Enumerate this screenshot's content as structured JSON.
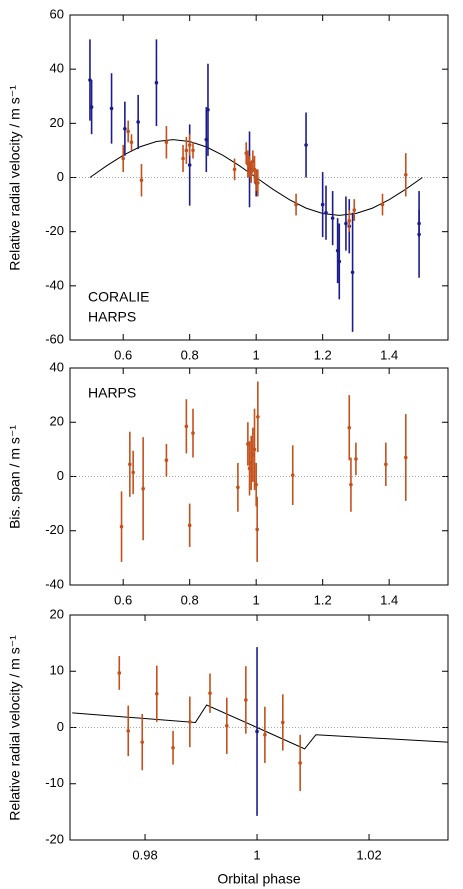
{
  "chart_data": [
    {
      "type": "scatter",
      "ylabel": "Relative radial velocity / m s⁻¹",
      "xlim": [
        0.44,
        1.577
      ],
      "ylim": [
        -60,
        60
      ],
      "xticks": [
        0.6,
        0.8,
        1,
        1.2,
        1.4
      ],
      "yticks": [
        -60,
        -40,
        -20,
        0,
        20,
        40,
        60
      ],
      "zero_line": true,
      "legend": "lower left",
      "model": {
        "color": "#000000",
        "x": [
          0.5,
          0.55,
          0.6,
          0.65,
          0.7,
          0.75,
          0.8,
          0.85,
          0.9,
          0.95,
          1.0,
          1.05,
          1.1,
          1.15,
          1.2,
          1.25,
          1.3,
          1.35,
          1.4,
          1.45,
          1.5
        ],
        "values": [
          0,
          4.3,
          8.2,
          11.3,
          13.3,
          14,
          13.3,
          11.3,
          8.2,
          4.3,
          0,
          -4.3,
          -8.2,
          -11.3,
          -13.3,
          -14,
          -13.3,
          -11.3,
          -8.2,
          -4.3,
          0
        ]
      },
      "series": [
        {
          "name": "CORALIE",
          "color": "#1c1c8c",
          "x": [
            0.5,
            0.505,
            0.565,
            0.605,
            0.645,
            0.7,
            0.8,
            0.85,
            0.855,
            0.98,
            1.0,
            1.15,
            1.2,
            1.21,
            1.23,
            1.245,
            1.25,
            1.27,
            1.28,
            1.29,
            1.49,
            1.49
          ],
          "values": [
            36,
            26,
            25.5,
            18,
            20.5,
            35,
            4.6,
            14,
            25,
            3,
            -2,
            12,
            -10,
            -13,
            -15,
            -27,
            -31,
            -17,
            -18,
            -35,
            -17,
            -21
          ],
          "errors": [
            15,
            10,
            13,
            10,
            10,
            16,
            15,
            12,
            17,
            14,
            5,
            12,
            12,
            10,
            10,
            12,
            14,
            10,
            10,
            22,
            5,
            16
          ]
        },
        {
          "name": "HARPS",
          "color": "#c4501c",
          "x": [
            0.6,
            0.615,
            0.625,
            0.655,
            0.73,
            0.78,
            0.79,
            0.8,
            0.81,
            0.935,
            0.97,
            0.975,
            0.98,
            0.985,
            0.99,
            0.995,
            1.0,
            1.005,
            1.12,
            1.28,
            1.295,
            1.38,
            1.45
          ],
          "values": [
            7,
            17,
            13,
            -1,
            13,
            7,
            10,
            12,
            10,
            3,
            9,
            5,
            4,
            2,
            6,
            3,
            -1,
            -2,
            -10,
            -16,
            -12,
            -10,
            1
          ],
          "errors": [
            5,
            4,
            3,
            6,
            6,
            5,
            5,
            4,
            3,
            4,
            4,
            5,
            4,
            4,
            4,
            5,
            4,
            5,
            4,
            4,
            4,
            4,
            8
          ]
        }
      ]
    },
    {
      "type": "scatter",
      "ylabel": "Bis. span / m s⁻¹",
      "xlim": [
        0.44,
        1.577
      ],
      "ylim": [
        -40,
        40
      ],
      "xticks": [
        0.6,
        0.8,
        1,
        1.2,
        1.4
      ],
      "yticks": [
        -40,
        -20,
        0,
        20,
        40
      ],
      "zero_line": true,
      "legend": "upper left",
      "series": [
        {
          "name": "HARPS",
          "color": "#c4501c",
          "x": [
            0.595,
            0.62,
            0.63,
            0.66,
            0.73,
            0.79,
            0.8,
            0.81,
            0.945,
            0.975,
            0.98,
            0.985,
            0.99,
            0.995,
            1.0,
            1.003,
            1.005,
            1.11,
            1.28,
            1.285,
            1.3,
            1.39,
            1.45
          ],
          "values": [
            -18.5,
            4.5,
            1.5,
            -4.5,
            6,
            18.5,
            -18,
            16,
            -4,
            12,
            3,
            5,
            8,
            10,
            -3,
            -19.5,
            22,
            0.5,
            18,
            -3,
            6.5,
            4.5,
            7
          ],
          "errors": [
            13,
            12,
            8,
            19,
            6,
            10,
            8,
            9,
            9,
            8,
            10,
            10,
            10,
            15,
            8,
            12,
            13,
            11,
            12,
            10,
            6,
            8,
            16
          ]
        }
      ]
    },
    {
      "type": "scatter",
      "ylabel": "Relative radial velocity / m s⁻¹",
      "xlabel": "Orbital phase",
      "xlim": [
        0.9666,
        1.0341
      ],
      "ylim": [
        -20,
        20
      ],
      "xticks": [
        0.98,
        1,
        1.02
      ],
      "yticks": [
        -20,
        -10,
        0,
        10,
        20
      ],
      "zero_line": true,
      "model": {
        "color": "#000000",
        "x": [
          0.967,
          0.989,
          0.991,
          1.0,
          1.0085,
          1.0105,
          1.034
        ],
        "values": [
          2.6,
          0.9,
          4,
          0,
          -3.8,
          -1.3,
          -2.6
        ]
      },
      "series": [
        {
          "color": "#c4501c",
          "x": [
            0.9754,
            0.977,
            0.9795,
            0.9821,
            0.985,
            0.988,
            0.9916,
            0.9946,
            0.998,
            1.0014,
            1.0046,
            1.0077
          ],
          "values": [
            9.7,
            -0.6,
            -2.6,
            6,
            -3.6,
            1,
            6.1,
            0.3,
            4.9,
            -1.3,
            0.9,
            -6.3
          ],
          "errors": [
            3,
            4.5,
            5,
            5,
            3,
            4.5,
            3.5,
            5,
            6,
            5,
            5,
            5
          ]
        },
        {
          "color": "#1c1c8c",
          "x": [
            1.0
          ],
          "values": [
            -0.7
          ],
          "errors": [
            15
          ]
        }
      ]
    }
  ]
}
